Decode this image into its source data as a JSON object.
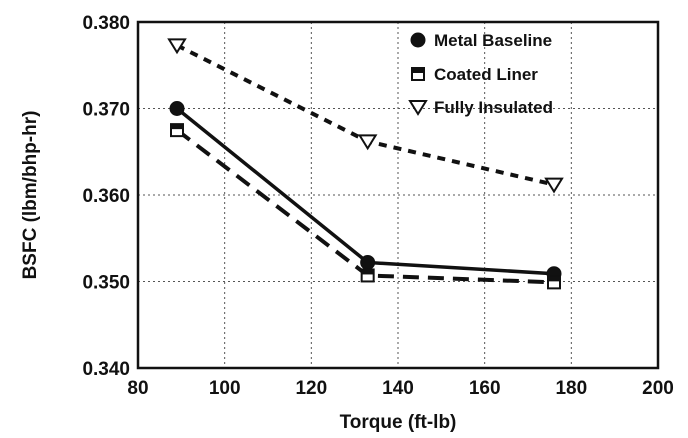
{
  "chart_data": {
    "type": "line",
    "title": "",
    "xlabel": "Torque (ft-lb)",
    "ylabel": "BSFC (lbm/bhp-hr)",
    "xlim": [
      80,
      200
    ],
    "ylim": [
      0.34,
      0.38
    ],
    "xticks": [
      "80",
      "100",
      "120",
      "140",
      "160",
      "180",
      "200"
    ],
    "yticks": [
      "0.340",
      "0.350",
      "0.360",
      "0.370",
      "0.380"
    ],
    "grid": "dotted",
    "legend_position": "top-right",
    "series": [
      {
        "name": "Metal Baseline",
        "marker": "circle-filled",
        "line": "solid",
        "x": [
          89,
          133,
          176
        ],
        "y": [
          0.37,
          0.3522,
          0.3509
        ]
      },
      {
        "name": "Coated Liner",
        "marker": "square-half",
        "line": "long-dash",
        "x": [
          89,
          133,
          176
        ],
        "y": [
          0.3675,
          0.3507,
          0.3499
        ]
      },
      {
        "name": "Fully Insulated",
        "marker": "triangle-down",
        "line": "short-dash",
        "x": [
          89,
          133,
          176
        ],
        "y": [
          0.3773,
          0.3662,
          0.3612
        ]
      }
    ]
  }
}
